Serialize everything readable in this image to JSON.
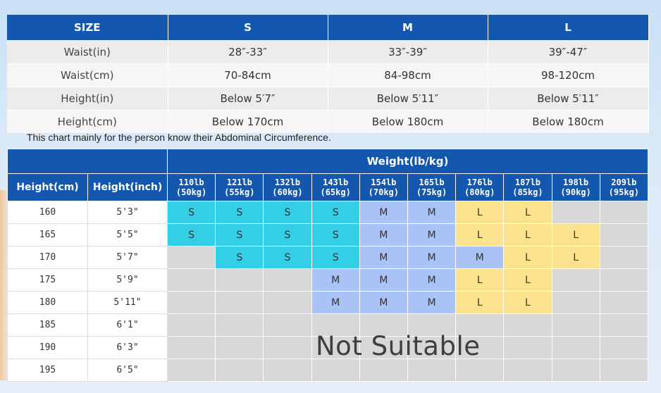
{
  "size_table": {
    "headers": [
      "SIZE",
      "S",
      "M",
      "L"
    ],
    "rows": [
      {
        "label": "Waist(in)",
        "values": [
          "28″-33″",
          "33″-39″",
          "39″-47″"
        ]
      },
      {
        "label": "Waist(cm)",
        "values": [
          "70-84cm",
          "84-98cm",
          "98-120cm"
        ]
      },
      {
        "label": "Height(in)",
        "values": [
          "Below 5′7″",
          "Below 5′11″",
          "Below 5′11″"
        ]
      },
      {
        "label": "Height(cm)",
        "values": [
          "Below 170cm",
          "Below 180cm",
          "Below 180cm"
        ]
      }
    ]
  },
  "note": "This chart mainly  for the person know their Abdominal Circumference.",
  "weight_table": {
    "title": "Weight(lb/kg)",
    "height_cm_header": "Height(cm)",
    "height_inch_header": "Height(inch)",
    "weights": [
      {
        "lb": "110lb",
        "kg": "(50kg)"
      },
      {
        "lb": "121lb",
        "kg": "(55kg)"
      },
      {
        "lb": "132lb",
        "kg": "(60kg)"
      },
      {
        "lb": "143lb",
        "kg": "(65kg)"
      },
      {
        "lb": "154lb",
        "kg": "(70kg)"
      },
      {
        "lb": "165lb",
        "kg": "(75kg)"
      },
      {
        "lb": "176lb",
        "kg": "(80kg)"
      },
      {
        "lb": "187lb",
        "kg": "(85kg)"
      },
      {
        "lb": "198lb",
        "kg": "(90kg)"
      },
      {
        "lb": "209lb",
        "kg": "(95kg)"
      }
    ],
    "rows": [
      {
        "cm": "160",
        "inch": "5'3\"",
        "cells": [
          "S",
          "S",
          "S",
          "S",
          "M",
          "M",
          "L",
          "L",
          "",
          ""
        ]
      },
      {
        "cm": "165",
        "inch": "5'5\"",
        "cells": [
          "S",
          "S",
          "S",
          "S",
          "M",
          "M",
          "L",
          "L",
          "L",
          ""
        ]
      },
      {
        "cm": "170",
        "inch": "5'7\"",
        "cells": [
          "",
          "S",
          "S",
          "S",
          "M",
          "M",
          "M",
          "L",
          "L",
          ""
        ]
      },
      {
        "cm": "175",
        "inch": "5'9\"",
        "cells": [
          "",
          "",
          "",
          "M",
          "M",
          "M",
          "L",
          "L",
          "",
          ""
        ]
      },
      {
        "cm": "180",
        "inch": "5'11\"",
        "cells": [
          "",
          "",
          "",
          "M",
          "M",
          "M",
          "L",
          "L",
          "",
          ""
        ]
      },
      {
        "cm": "185",
        "inch": "6'1\"",
        "cells": [
          "",
          "",
          "",
          "",
          "",
          "",
          "",
          "",
          "",
          ""
        ]
      },
      {
        "cm": "190",
        "inch": "6'3\"",
        "cells": [
          "",
          "",
          "",
          "",
          "",
          "",
          "",
          "",
          "",
          ""
        ]
      },
      {
        "cm": "195",
        "inch": "6'5\"",
        "cells": [
          "",
          "",
          "",
          "",
          "",
          "",
          "",
          "",
          "",
          ""
        ]
      }
    ],
    "not_suitable_label": "Not Suitable",
    "colors": {
      "S": "#34cfe6",
      "M": "#a9c3f7",
      "L": "#fae38c",
      "none": "#d7d7d7",
      "header": "#1457ae"
    }
  }
}
